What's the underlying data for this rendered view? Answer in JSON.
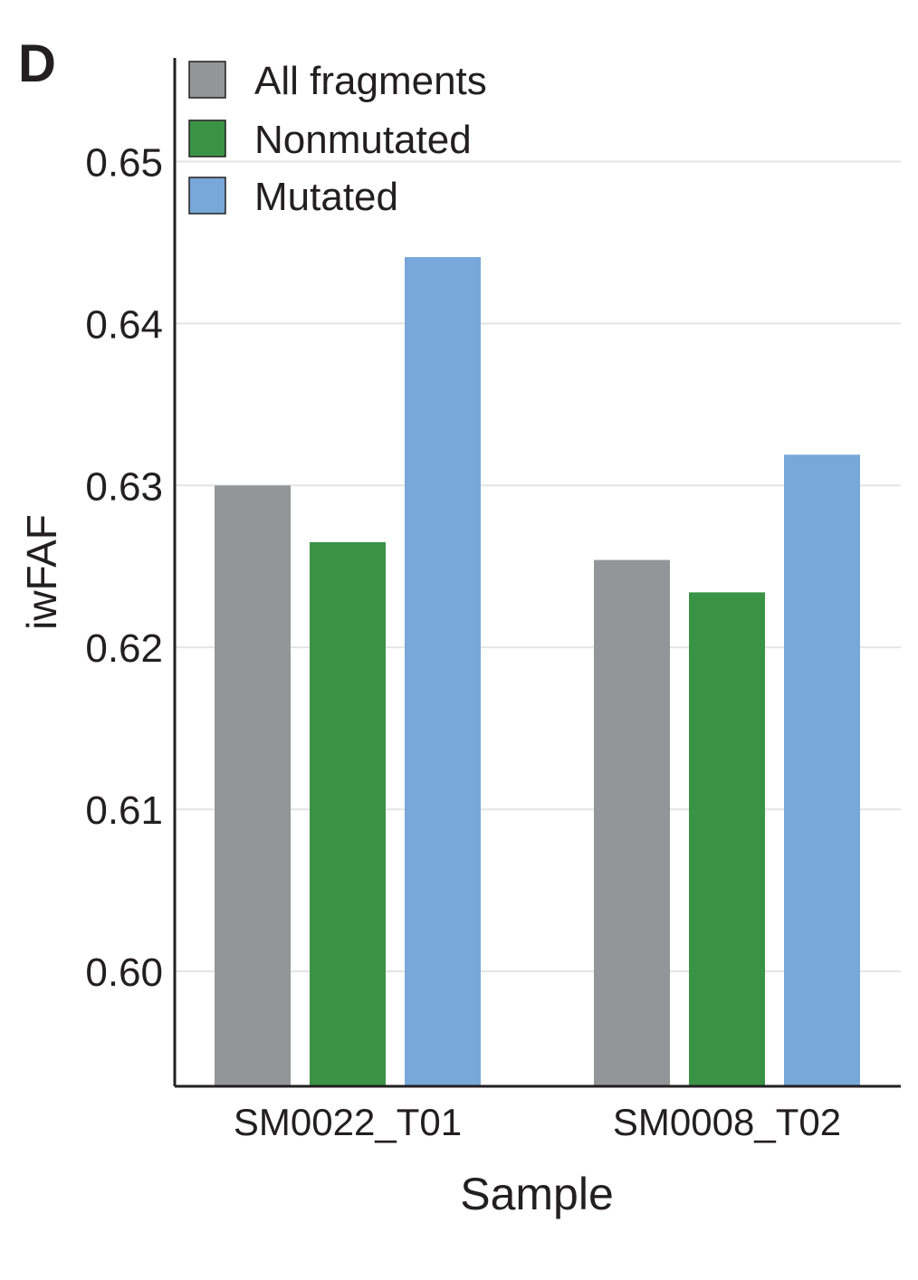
{
  "panel_label": "D",
  "chart_data": {
    "type": "bar",
    "categories": [
      "SM0022_T01",
      "SM0008_T02"
    ],
    "series": [
      {
        "name": "All fragments",
        "color": "#939598",
        "values": [
          0.63,
          0.6254
        ]
      },
      {
        "name": "Nonmutated",
        "color": "#3a9345",
        "values": [
          0.6265,
          0.6234
        ]
      },
      {
        "name": "Mutated",
        "color": "#78a7d9",
        "values": [
          0.6441,
          0.6319
        ]
      }
    ],
    "xlabel": "Sample",
    "ylabel": "iwFAF",
    "ylim": [
      0.5929,
      0.6564
    ],
    "yticks": [
      0.6,
      0.61,
      0.62,
      0.63,
      0.64,
      0.65
    ],
    "ytick_labels": [
      "0.60",
      "0.61",
      "0.62",
      "0.63",
      "0.64",
      "0.65"
    ],
    "grid": true,
    "legend_position": "top-left"
  }
}
